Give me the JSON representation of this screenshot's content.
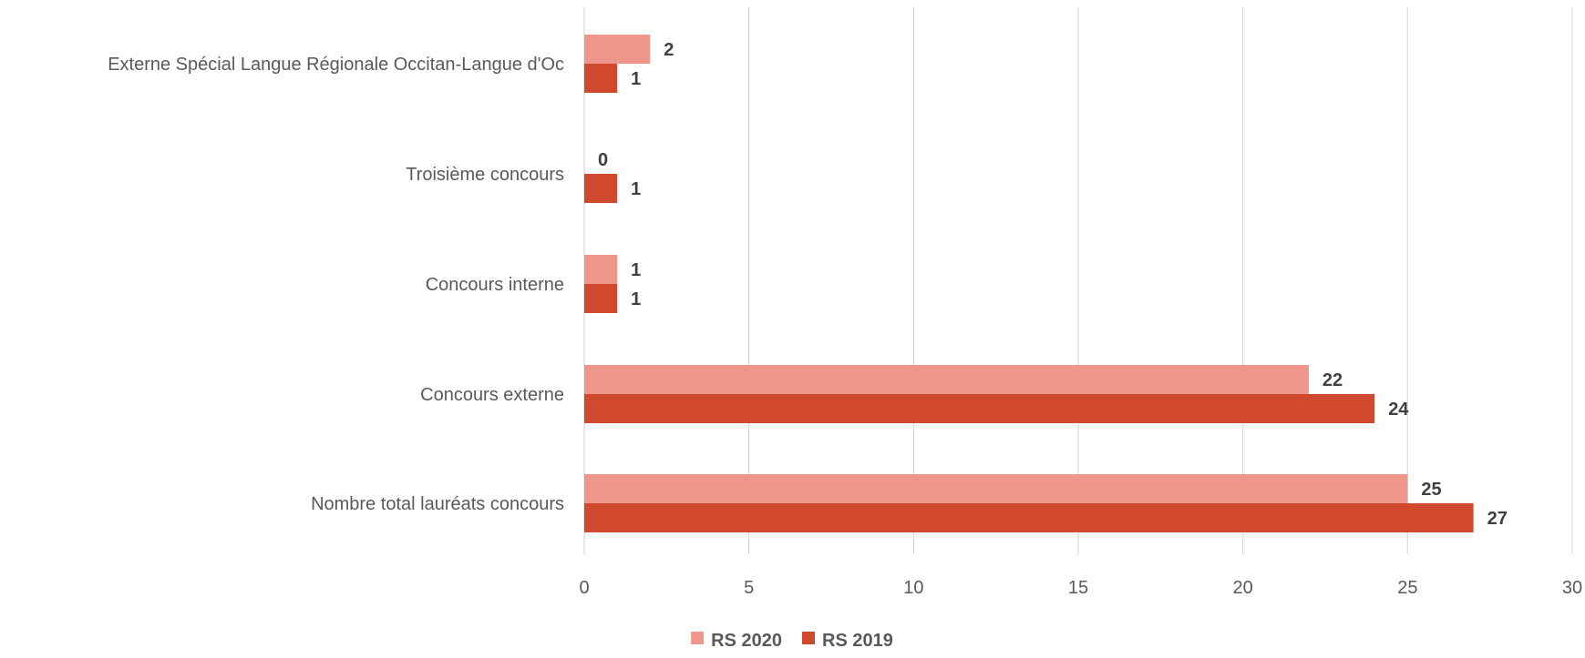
{
  "chart_data": {
    "type": "bar",
    "orientation": "horizontal",
    "categories": [
      "Externe Spécial Langue Régionale  Occitan-Langue d'Oc",
      "Troisième concours",
      "Concours interne",
      "Concours externe",
      "Nombre total lauréats concours"
    ],
    "series": [
      {
        "name": "RS 2020",
        "values": [
          2,
          0,
          1,
          22,
          25
        ],
        "color": "#ee968b"
      },
      {
        "name": "RS 2019",
        "values": [
          1,
          1,
          1,
          24,
          27
        ],
        "color": "#d0492d"
      }
    ],
    "xlim": [
      0,
      30
    ],
    "x_ticks": [
      "0",
      "5",
      "10",
      "15",
      "20",
      "25",
      "30"
    ],
    "grid": true,
    "legend_position": "bottom",
    "data_labels": true
  }
}
